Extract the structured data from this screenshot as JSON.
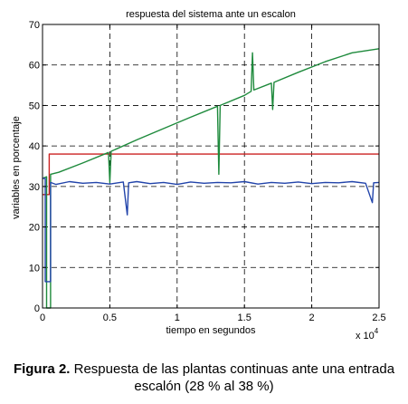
{
  "chart_data": {
    "type": "line",
    "title": "respuesta del sistema ante un escalon",
    "xlabel": "tiempo en segundos",
    "ylabel": "variables en porcentaje",
    "x_exponent_label": "x 10",
    "x_exponent_power": "4",
    "xlim": [
      0,
      2.5
    ],
    "ylim": [
      0,
      70
    ],
    "x_ticks": [
      "0",
      "0.5",
      "1",
      "1.5",
      "2",
      "2.5"
    ],
    "x_tick_values": [
      0,
      0.5,
      1,
      1.5,
      2,
      2.5
    ],
    "y_ticks": [
      "0",
      "10",
      "20",
      "30",
      "40",
      "50",
      "60",
      "70"
    ],
    "y_tick_values": [
      0,
      10,
      20,
      30,
      40,
      50,
      60,
      70
    ],
    "grid": true,
    "series": [
      {
        "color": "#cc2222",
        "x": [
          0,
          0.05,
          0.05,
          2.5
        ],
        "y": [
          28,
          28,
          38,
          38
        ]
      },
      {
        "color": "#1e8a3c",
        "x": [
          0,
          0.03,
          0.03,
          0.06,
          0.06,
          0.12,
          0.3,
          0.49,
          0.5,
          0.51,
          0.7,
          0.9,
          1.1,
          1.3,
          1.31,
          1.32,
          1.5,
          1.55,
          1.56,
          1.57,
          1.7,
          1.71,
          1.72,
          1.9,
          2.1,
          2.3,
          2.5
        ],
        "y": [
          32,
          32.4,
          0,
          0,
          33,
          33.5,
          35.8,
          38.4,
          31,
          38.7,
          41.5,
          44.3,
          47.1,
          49.8,
          33,
          50,
          52.5,
          53.5,
          63,
          53.8,
          55.5,
          49,
          55.7,
          58.2,
          60.8,
          63,
          64
        ]
      },
      {
        "color": "#2244aa",
        "x": [
          0,
          0.02,
          0.02,
          0.06,
          0.06,
          0.1,
          0.2,
          0.3,
          0.4,
          0.5,
          0.6,
          0.63,
          0.64,
          0.7,
          0.8,
          0.9,
          1.0,
          1.1,
          1.2,
          1.3,
          1.4,
          1.5,
          1.6,
          1.7,
          1.8,
          1.9,
          2.0,
          2.1,
          2.2,
          2.3,
          2.4,
          2.45,
          2.46,
          2.5
        ],
        "y": [
          32,
          32,
          6.5,
          6.5,
          31,
          30.5,
          31.2,
          30.8,
          31,
          30.6,
          31.1,
          23,
          30.9,
          31.2,
          30.7,
          31,
          30.5,
          31.1,
          30.8,
          31,
          30.9,
          31.2,
          30.6,
          31,
          30.8,
          31.1,
          30.7,
          31,
          30.9,
          31.2,
          30.8,
          26,
          30.9,
          31
        ]
      }
    ]
  },
  "caption": {
    "label": "Figura 2.",
    "text": " Respuesta de las plantas continuas ante una entrada escalón (28 % al 38 %)"
  }
}
